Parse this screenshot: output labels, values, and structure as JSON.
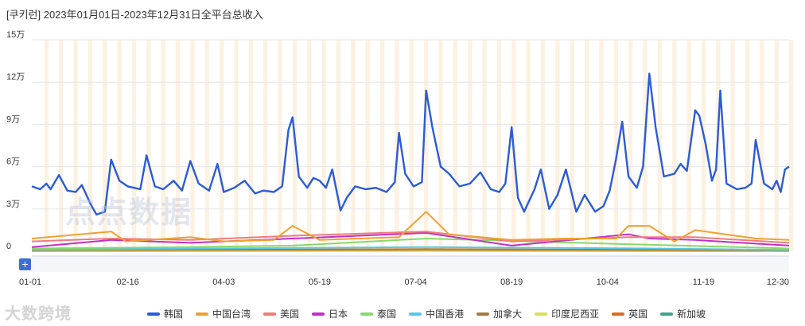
{
  "header": {
    "title": "[쿠키런]  2023年01月01日-2023年12月31日全平台总收入"
  },
  "watermarks": {
    "center": "点点数据",
    "corner": "大数跨境"
  },
  "chart_data": {
    "type": "line",
    "ylim": [
      0,
      150000
    ],
    "yticks": [
      {
        "value": 0,
        "label": "0"
      },
      {
        "value": 30000,
        "label": "3万"
      },
      {
        "value": 60000,
        "label": "6万"
      },
      {
        "value": 90000,
        "label": "9万"
      },
      {
        "value": 120000,
        "label": "12万"
      },
      {
        "value": 150000,
        "label": "15万"
      }
    ],
    "x_range": [
      "2023-01-01",
      "2023-12-30"
    ],
    "xticks": [
      {
        "date": "2023-01-01",
        "label": "01-01"
      },
      {
        "date": "2023-02-16",
        "label": "02-16"
      },
      {
        "date": "2023-04-03",
        "label": "04-03"
      },
      {
        "date": "2023-05-19",
        "label": "05-19"
      },
      {
        "date": "2023-07-04",
        "label": "07-04"
      },
      {
        "date": "2023-08-19",
        "label": "08-19"
      },
      {
        "date": "2023-10-04",
        "label": "10-04"
      },
      {
        "date": "2023-11-19",
        "label": "11-19"
      },
      {
        "date": "2023-12-30",
        "label": "12-30"
      }
    ],
    "weekend_shading": true,
    "legend_position": "bottom",
    "series": [
      {
        "name": "韩国",
        "color": "#2b5bd7",
        "points": [
          [
            "2023-01-01",
            46000
          ],
          [
            "2023-01-05",
            44000
          ],
          [
            "2023-01-08",
            48000
          ],
          [
            "2023-01-10",
            44000
          ],
          [
            "2023-01-14",
            54000
          ],
          [
            "2023-01-18",
            43000
          ],
          [
            "2023-01-22",
            42000
          ],
          [
            "2023-01-25",
            47000
          ],
          [
            "2023-01-29",
            34000
          ],
          [
            "2023-02-01",
            26000
          ],
          [
            "2023-02-05",
            28000
          ],
          [
            "2023-02-08",
            65000
          ],
          [
            "2023-02-12",
            50000
          ],
          [
            "2023-02-16",
            46000
          ],
          [
            "2023-02-19",
            45000
          ],
          [
            "2023-02-22",
            44000
          ],
          [
            "2023-02-25",
            68000
          ],
          [
            "2023-03-01",
            46000
          ],
          [
            "2023-03-05",
            44000
          ],
          [
            "2023-03-10",
            50000
          ],
          [
            "2023-03-14",
            43000
          ],
          [
            "2023-03-18",
            64000
          ],
          [
            "2023-03-22",
            48000
          ],
          [
            "2023-03-27",
            43000
          ],
          [
            "2023-03-31",
            62000
          ],
          [
            "2023-04-03",
            42000
          ],
          [
            "2023-04-08",
            45000
          ],
          [
            "2023-04-13",
            50000
          ],
          [
            "2023-04-18",
            41000
          ],
          [
            "2023-04-22",
            43000
          ],
          [
            "2023-04-27",
            42000
          ],
          [
            "2023-05-01",
            46000
          ],
          [
            "2023-05-04",
            86000
          ],
          [
            "2023-05-06",
            95000
          ],
          [
            "2023-05-09",
            53000
          ],
          [
            "2023-05-13",
            45000
          ],
          [
            "2023-05-16",
            52000
          ],
          [
            "2023-05-19",
            50000
          ],
          [
            "2023-05-22",
            45000
          ],
          [
            "2023-05-25",
            58000
          ],
          [
            "2023-05-29",
            29000
          ],
          [
            "2023-06-01",
            38000
          ],
          [
            "2023-06-05",
            46000
          ],
          [
            "2023-06-10",
            44000
          ],
          [
            "2023-06-15",
            45000
          ],
          [
            "2023-06-20",
            42000
          ],
          [
            "2023-06-24",
            49000
          ],
          [
            "2023-06-26",
            84000
          ],
          [
            "2023-06-29",
            55000
          ],
          [
            "2023-07-03",
            46000
          ],
          [
            "2023-07-07",
            49000
          ],
          [
            "2023-07-09",
            114000
          ],
          [
            "2023-07-12",
            88000
          ],
          [
            "2023-07-16",
            60000
          ],
          [
            "2023-07-20",
            55000
          ],
          [
            "2023-07-25",
            46000
          ],
          [
            "2023-07-30",
            48000
          ],
          [
            "2023-08-04",
            56000
          ],
          [
            "2023-08-09",
            44000
          ],
          [
            "2023-08-13",
            42000
          ],
          [
            "2023-08-16",
            48000
          ],
          [
            "2023-08-19",
            88000
          ],
          [
            "2023-08-22",
            38000
          ],
          [
            "2023-08-25",
            28000
          ],
          [
            "2023-08-30",
            44000
          ],
          [
            "2023-09-02",
            58000
          ],
          [
            "2023-09-06",
            30000
          ],
          [
            "2023-09-10",
            40000
          ],
          [
            "2023-09-14",
            58000
          ],
          [
            "2023-09-19",
            28000
          ],
          [
            "2023-09-23",
            40000
          ],
          [
            "2023-09-28",
            28000
          ],
          [
            "2023-10-02",
            32000
          ],
          [
            "2023-10-05",
            43000
          ],
          [
            "2023-10-08",
            65000
          ],
          [
            "2023-10-11",
            92000
          ],
          [
            "2023-10-14",
            53000
          ],
          [
            "2023-10-18",
            45000
          ],
          [
            "2023-10-21",
            60000
          ],
          [
            "2023-10-24",
            126000
          ],
          [
            "2023-10-27",
            88000
          ],
          [
            "2023-10-31",
            53000
          ],
          [
            "2023-11-05",
            55000
          ],
          [
            "2023-11-08",
            62000
          ],
          [
            "2023-11-11",
            57000
          ],
          [
            "2023-11-15",
            100000
          ],
          [
            "2023-11-17",
            96000
          ],
          [
            "2023-11-20",
            76000
          ],
          [
            "2023-11-23",
            50000
          ],
          [
            "2023-11-25",
            58000
          ],
          [
            "2023-11-27",
            114000
          ],
          [
            "2023-11-30",
            48000
          ],
          [
            "2023-12-05",
            44000
          ],
          [
            "2023-12-09",
            45000
          ],
          [
            "2023-12-12",
            48000
          ],
          [
            "2023-12-14",
            79000
          ],
          [
            "2023-12-18",
            48000
          ],
          [
            "2023-12-22",
            44000
          ],
          [
            "2023-12-24",
            50000
          ],
          [
            "2023-12-26",
            42000
          ],
          [
            "2023-12-28",
            58000
          ],
          [
            "2023-12-30",
            60000
          ]
        ]
      },
      {
        "name": "中国台湾",
        "color": "#f0a030",
        "points": [
          [
            "2023-01-01",
            9000
          ],
          [
            "2023-02-08",
            14000
          ],
          [
            "2023-02-15",
            7000
          ],
          [
            "2023-03-18",
            10000
          ],
          [
            "2023-04-03",
            7000
          ],
          [
            "2023-04-27",
            8000
          ],
          [
            "2023-05-06",
            18000
          ],
          [
            "2023-05-19",
            8000
          ],
          [
            "2023-06-26",
            10000
          ],
          [
            "2023-07-09",
            28000
          ],
          [
            "2023-07-20",
            12000
          ],
          [
            "2023-08-19",
            8000
          ],
          [
            "2023-09-14",
            9000
          ],
          [
            "2023-10-08",
            9000
          ],
          [
            "2023-10-14",
            18000
          ],
          [
            "2023-10-24",
            18000
          ],
          [
            "2023-11-05",
            7000
          ],
          [
            "2023-11-15",
            15000
          ],
          [
            "2023-12-14",
            9000
          ],
          [
            "2023-12-30",
            8000
          ]
        ]
      },
      {
        "name": "美国",
        "color": "#ef7b7b",
        "points": [
          [
            "2023-01-01",
            7000
          ],
          [
            "2023-02-08",
            9000
          ],
          [
            "2023-03-18",
            8000
          ],
          [
            "2023-05-06",
            11000
          ],
          [
            "2023-07-09",
            14000
          ],
          [
            "2023-08-19",
            7000
          ],
          [
            "2023-10-14",
            10000
          ],
          [
            "2023-10-24",
            10000
          ],
          [
            "2023-11-15",
            10000
          ],
          [
            "2023-12-30",
            6000
          ]
        ]
      },
      {
        "name": "日本",
        "color": "#c02fc9",
        "points": [
          [
            "2023-01-01",
            3000
          ],
          [
            "2023-02-08",
            8000
          ],
          [
            "2023-03-18",
            6000
          ],
          [
            "2023-05-06",
            9000
          ],
          [
            "2023-07-09",
            13000
          ],
          [
            "2023-08-19",
            4000
          ],
          [
            "2023-10-14",
            12000
          ],
          [
            "2023-10-24",
            9000
          ],
          [
            "2023-11-15",
            8000
          ],
          [
            "2023-12-30",
            4000
          ]
        ]
      },
      {
        "name": "泰国",
        "color": "#88d86a",
        "points": [
          [
            "2023-01-01",
            2000
          ],
          [
            "2023-03-18",
            3000
          ],
          [
            "2023-05-06",
            4000
          ],
          [
            "2023-07-09",
            9000
          ],
          [
            "2023-10-14",
            5000
          ],
          [
            "2023-12-30",
            2000
          ]
        ]
      },
      {
        "name": "中国香港",
        "color": "#55c8e8",
        "points": [
          [
            "2023-01-01",
            1200
          ],
          [
            "2023-07-09",
            3000
          ],
          [
            "2023-10-24",
            2000
          ],
          [
            "2023-12-30",
            1000
          ]
        ]
      },
      {
        "name": "加拿大",
        "color": "#a37a40",
        "points": [
          [
            "2023-01-01",
            800
          ],
          [
            "2023-07-09",
            1500
          ],
          [
            "2023-12-30",
            700
          ]
        ]
      },
      {
        "name": "印度尼西亚",
        "color": "#d8e055",
        "points": [
          [
            "2023-01-01",
            500
          ],
          [
            "2023-07-09",
            1000
          ],
          [
            "2023-12-30",
            500
          ]
        ]
      },
      {
        "name": "英国",
        "color": "#e06a20",
        "points": [
          [
            "2023-01-01",
            300
          ],
          [
            "2023-07-09",
            700
          ],
          [
            "2023-12-30",
            300
          ]
        ]
      },
      {
        "name": "新加坡",
        "color": "#3aa68a",
        "points": [
          [
            "2023-01-01",
            200
          ],
          [
            "2023-07-09",
            500
          ],
          [
            "2023-12-30",
            200
          ]
        ]
      }
    ]
  }
}
